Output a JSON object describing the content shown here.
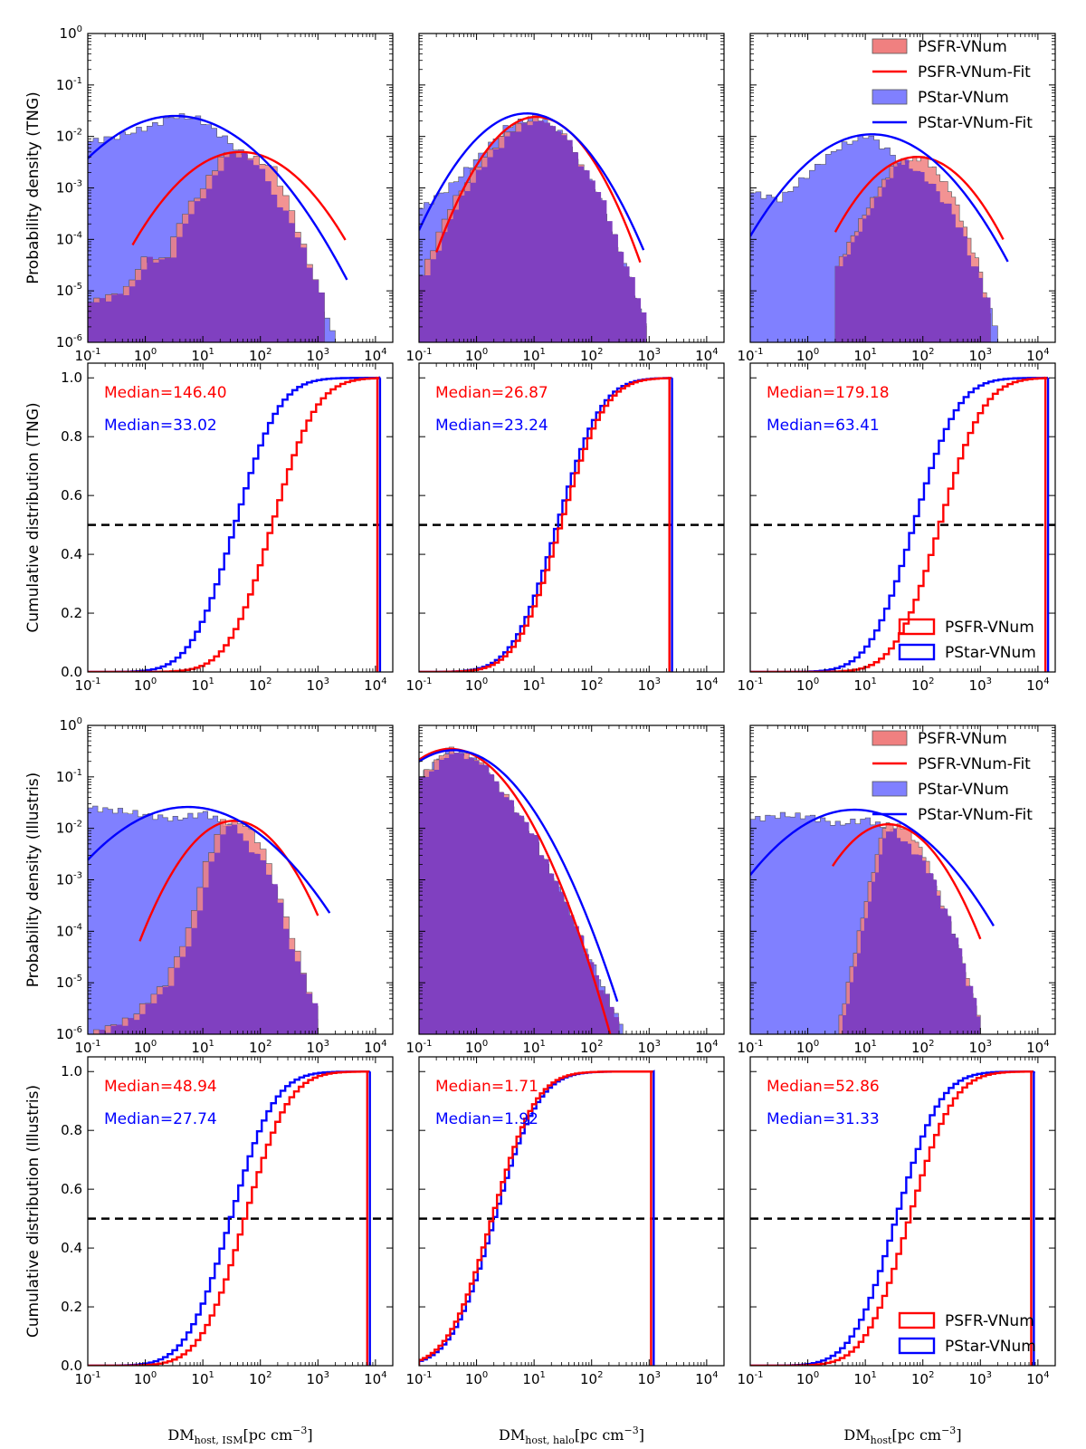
{
  "figure": {
    "row_ylabels": [
      "Probability density (TNG)",
      "Cumulative distribution (TNG)",
      "Probability density (Illustris)",
      "Cumulative distribution (Illustris)"
    ],
    "col_xlabels": [
      {
        "main": "DM",
        "sub": "host, ISM",
        "unit": "[pc cm",
        "unit_exp": "−3",
        "close": "]"
      },
      {
        "main": "DM",
        "sub": "host, halo",
        "unit": "[pc cm",
        "unit_exp": "−3",
        "close": "]"
      },
      {
        "main": "DM",
        "sub": "host",
        "unit": "[pc cm",
        "unit_exp": "−3",
        "close": "]"
      }
    ]
  },
  "colors": {
    "psfr": "#ff0000",
    "pstar": "#0000ff",
    "psfr_fill": "#f08080",
    "pstar_fill": "#8080ff",
    "overlap_fill": "#8040c0",
    "median_line": "#000000"
  },
  "legend_pdf": [
    "PSFR-VNum",
    "PSFR-VNum-Fit",
    "PStar-VNum",
    "PStar-VNum-Fit"
  ],
  "legend_cdf": [
    "PSFR-VNum",
    "PStar-VNum"
  ],
  "x_ticks": {
    "mantissa": "10",
    "exponents": [
      "-1",
      "0",
      "1",
      "2",
      "3",
      "4"
    ]
  },
  "y_ticks_pdf": {
    "mantissa": "10",
    "exponents": [
      "-6",
      "-5",
      "-4",
      "-3",
      "-2",
      "-1",
      "0"
    ]
  },
  "y_ticks_cdf": [
    "0.0",
    "0.2",
    "0.4",
    "0.6",
    "0.8",
    "1.0"
  ],
  "chart_data": [
    {
      "type": "area",
      "dataset": "TNG",
      "panel": "DM_host,ISM PDF",
      "xscale": "log",
      "yscale": "log",
      "xlim": [
        0.1,
        20000
      ],
      "ylim": [
        1e-06,
        1
      ],
      "fits": {
        "PSFR-VNum-Fit": {
          "peak_x": 45,
          "peak_y": 0.005,
          "sigma_dex": 0.65,
          "x_range": [
            0.6,
            3000
          ]
        },
        "PStar-VNum-Fit": {
          "peak_x": 3.3,
          "peak_y": 0.025,
          "sigma_dex": 0.78,
          "x_range": [
            0.1,
            3200
          ]
        }
      },
      "hists": {
        "PSFR-VNum": {
          "x": [
            0.1,
            0.4,
            0.8,
            2,
            4,
            8,
            20,
            50,
            150,
            300,
            600,
            1000,
            1300
          ],
          "y": [
            6e-06,
            1e-05,
            4e-05,
            4e-05,
            0.0003,
            0.0008,
            0.0045,
            0.0045,
            0.0025,
            0.0004,
            4e-05,
            1e-05,
            1e-06
          ]
        },
        "PStar-VNum": {
          "x": [
            0.1,
            0.3,
            1,
            3,
            8,
            20,
            50,
            100,
            300,
            1000,
            2000
          ],
          "y": [
            0.008,
            0.01,
            0.015,
            0.025,
            0.022,
            0.01,
            0.004,
            0.0015,
            0.0002,
            5e-06,
            1e-06
          ]
        }
      }
    },
    {
      "type": "area",
      "dataset": "TNG",
      "panel": "DM_host,halo PDF",
      "xscale": "log",
      "yscale": "log",
      "xlim": [
        0.1,
        20000
      ],
      "ylim": [
        1e-06,
        1
      ],
      "fits": {
        "PSFR-VNum-Fit": {
          "peak_x": 11,
          "peak_y": 0.024,
          "sigma_dex": 0.5,
          "x_range": [
            0.2,
            700
          ]
        },
        "PStar-VNum-Fit": {
          "peak_x": 7.5,
          "peak_y": 0.028,
          "sigma_dex": 0.58,
          "x_range": [
            0.1,
            800
          ]
        }
      },
      "hists": {
        "PSFR-VNum": {
          "x": [
            0.1,
            0.3,
            1,
            3,
            10,
            30,
            100,
            300,
            900
          ],
          "y": [
            2e-05,
            0.0004,
            0.003,
            0.012,
            0.024,
            0.01,
            0.0008,
            3e-05,
            1e-06
          ]
        },
        "PStar-VNum": {
          "x": [
            0.1,
            0.3,
            1,
            3,
            10,
            30,
            100,
            300,
            900
          ],
          "y": [
            0.0004,
            0.001,
            0.004,
            0.015,
            0.026,
            0.01,
            0.001,
            5e-05,
            1e-06
          ]
        }
      }
    },
    {
      "type": "area",
      "dataset": "TNG",
      "panel": "DM_host PDF",
      "xscale": "log",
      "yscale": "log",
      "xlim": [
        0.1,
        20000
      ],
      "ylim": [
        1e-06,
        1
      ],
      "fits": {
        "PSFR-VNum-Fit": {
          "peak_x": 80,
          "peak_y": 0.004,
          "sigma_dex": 0.55,
          "x_range": [
            3,
            2500
          ]
        },
        "PStar-VNum-Fit": {
          "peak_x": 13,
          "peak_y": 0.011,
          "sigma_dex": 0.7,
          "x_range": [
            0.1,
            3000
          ]
        }
      },
      "hists": {
        "PSFR-VNum": {
          "x": [
            3,
            10,
            30,
            100,
            300,
            1000,
            1500
          ],
          "y": [
            3e-05,
            0.0004,
            0.003,
            0.004,
            0.0008,
            2e-05,
            1e-06
          ]
        },
        "PStar-VNum": {
          "x": [
            0.1,
            0.3,
            1,
            3,
            10,
            30,
            100,
            300,
            1000,
            2000
          ],
          "y": [
            0.0008,
            0.0006,
            0.002,
            0.006,
            0.011,
            0.004,
            0.0015,
            0.0003,
            1e-05,
            1e-06
          ]
        }
      }
    },
    {
      "type": "line",
      "dataset": "TNG",
      "panel": "DM_host,ISM CDF",
      "xscale": "log",
      "xlim": [
        0.1,
        20000
      ],
      "ylim": [
        0,
        1.05
      ],
      "medians": {
        "PSFR-VNum": 146.4,
        "PStar-VNum": 33.02
      },
      "median_labels": [
        "Median=146.40",
        "Median=33.02"
      ],
      "x_max": 12000
    },
    {
      "type": "line",
      "dataset": "TNG",
      "panel": "DM_host,halo CDF",
      "xscale": "log",
      "xlim": [
        0.1,
        20000
      ],
      "ylim": [
        0,
        1.05
      ],
      "medians": {
        "PSFR-VNum": 26.87,
        "PStar-VNum": 23.24
      },
      "median_labels": [
        "Median=26.87",
        "Median=23.24"
      ],
      "x_max": 2500
    },
    {
      "type": "line",
      "dataset": "TNG",
      "panel": "DM_host CDF",
      "xscale": "log",
      "xlim": [
        0.1,
        20000
      ],
      "ylim": [
        0,
        1.05
      ],
      "medians": {
        "PSFR-VNum": 179.18,
        "PStar-VNum": 63.41
      },
      "median_labels": [
        "Median=179.18",
        "Median=63.41"
      ],
      "x_max": 15000
    },
    {
      "type": "area",
      "dataset": "Illustris",
      "panel": "DM_host,ISM PDF",
      "xscale": "log",
      "yscale": "log",
      "xlim": [
        0.1,
        20000
      ],
      "ylim": [
        1e-06,
        1
      ],
      "fits": {
        "PSFR-VNum-Fit": {
          "peak_x": 35,
          "peak_y": 0.014,
          "sigma_dex": 0.5,
          "x_range": [
            0.8,
            1000
          ]
        },
        "PStar-VNum-Fit": {
          "peak_x": 5.5,
          "peak_y": 0.026,
          "sigma_dex": 0.8,
          "x_range": [
            0.1,
            1600
          ]
        }
      },
      "hists": {
        "PSFR-VNum": {
          "x": [
            0.1,
            0.5,
            2,
            5,
            10,
            20,
            50,
            100,
            300,
            800,
            1000
          ],
          "y": [
            1e-06,
            2e-06,
            1e-05,
            0.0001,
            0.002,
            0.014,
            0.012,
            0.004,
            0.0001,
            3e-06,
            1e-06
          ]
        },
        "PStar-VNum": {
          "x": [
            0.1,
            0.3,
            1,
            3,
            10,
            30,
            100,
            300,
            1000
          ],
          "y": [
            0.025,
            0.022,
            0.018,
            0.015,
            0.02,
            0.01,
            0.002,
            5e-05,
            1e-06
          ]
        }
      }
    },
    {
      "type": "area",
      "dataset": "Illustris",
      "panel": "DM_host,halo PDF",
      "xscale": "log",
      "yscale": "log",
      "xlim": [
        0.1,
        20000
      ],
      "ylim": [
        1e-06,
        1
      ],
      "fits": {
        "PSFR-VNum-Fit": {
          "peak_x": 0.35,
          "peak_y": 0.35,
          "sigma_dex": 0.55,
          "x_range": [
            0.1,
            250
          ]
        },
        "PStar-VNum-Fit": {
          "peak_x": 0.4,
          "peak_y": 0.33,
          "sigma_dex": 0.6,
          "x_range": [
            0.1,
            280
          ]
        }
      },
      "hists": {
        "PSFR-VNum": {
          "x": [
            0.1,
            0.3,
            1,
            3,
            10,
            30,
            100,
            300
          ],
          "y": [
            0.1,
            0.35,
            0.2,
            0.04,
            0.005,
            0.0003,
            1e-05,
            1e-06
          ]
        },
        "PStar-VNum": {
          "x": [
            0.1,
            0.3,
            1,
            3,
            10,
            30,
            100,
            350
          ],
          "y": [
            0.1,
            0.33,
            0.2,
            0.04,
            0.005,
            0.0004,
            2e-05,
            1e-06
          ]
        }
      }
    },
    {
      "type": "area",
      "dataset": "Illustris",
      "panel": "DM_host PDF",
      "xscale": "log",
      "yscale": "log",
      "xlim": [
        0.1,
        20000
      ],
      "ylim": [
        1e-06,
        1
      ],
      "fits": {
        "PSFR-VNum-Fit": {
          "peak_x": 25,
          "peak_y": 0.012,
          "sigma_dex": 0.5,
          "x_range": [
            2.7,
            1000
          ]
        },
        "PStar-VNum-Fit": {
          "peak_x": 6.5,
          "peak_y": 0.023,
          "sigma_dex": 0.75,
          "x_range": [
            0.1,
            1700
          ]
        }
      },
      "hists": {
        "PSFR-VNum": {
          "x": [
            3,
            10,
            20,
            50,
            100,
            300,
            800,
            1000
          ],
          "y": [
            1e-06,
            0.0005,
            0.012,
            0.01,
            0.003,
            0.0001,
            3e-06,
            1e-06
          ]
        },
        "PStar-VNum": {
          "x": [
            0.1,
            0.3,
            1,
            3,
            10,
            30,
            100,
            300,
            1000
          ],
          "y": [
            0.015,
            0.018,
            0.017,
            0.012,
            0.015,
            0.008,
            0.002,
            0.0001,
            1e-06
          ]
        }
      }
    },
    {
      "type": "line",
      "dataset": "Illustris",
      "panel": "DM_host,ISM CDF",
      "xscale": "log",
      "xlim": [
        0.1,
        20000
      ],
      "ylim": [
        0,
        1.05
      ],
      "medians": {
        "PSFR-VNum": 48.94,
        "PStar-VNum": 27.74
      },
      "median_labels": [
        "Median=48.94",
        "Median=27.74"
      ],
      "x_max": 8000
    },
    {
      "type": "line",
      "dataset": "Illustris",
      "panel": "DM_host,halo CDF",
      "xscale": "log",
      "xlim": [
        0.1,
        20000
      ],
      "ylim": [
        0,
        1.05
      ],
      "medians": {
        "PSFR-VNum": 1.71,
        "PStar-VNum": 1.92
      },
      "median_labels": [
        "Median=1.71",
        "Median=1.92"
      ],
      "x_max": 1200
    },
    {
      "type": "line",
      "dataset": "Illustris",
      "panel": "DM_host CDF",
      "xscale": "log",
      "xlim": [
        0.1,
        20000
      ],
      "ylim": [
        0,
        1.05
      ],
      "medians": {
        "PSFR-VNum": 52.86,
        "PStar-VNum": 31.33
      },
      "median_labels": [
        "Median=52.86",
        "Median=31.33"
      ],
      "x_max": 8500
    }
  ]
}
